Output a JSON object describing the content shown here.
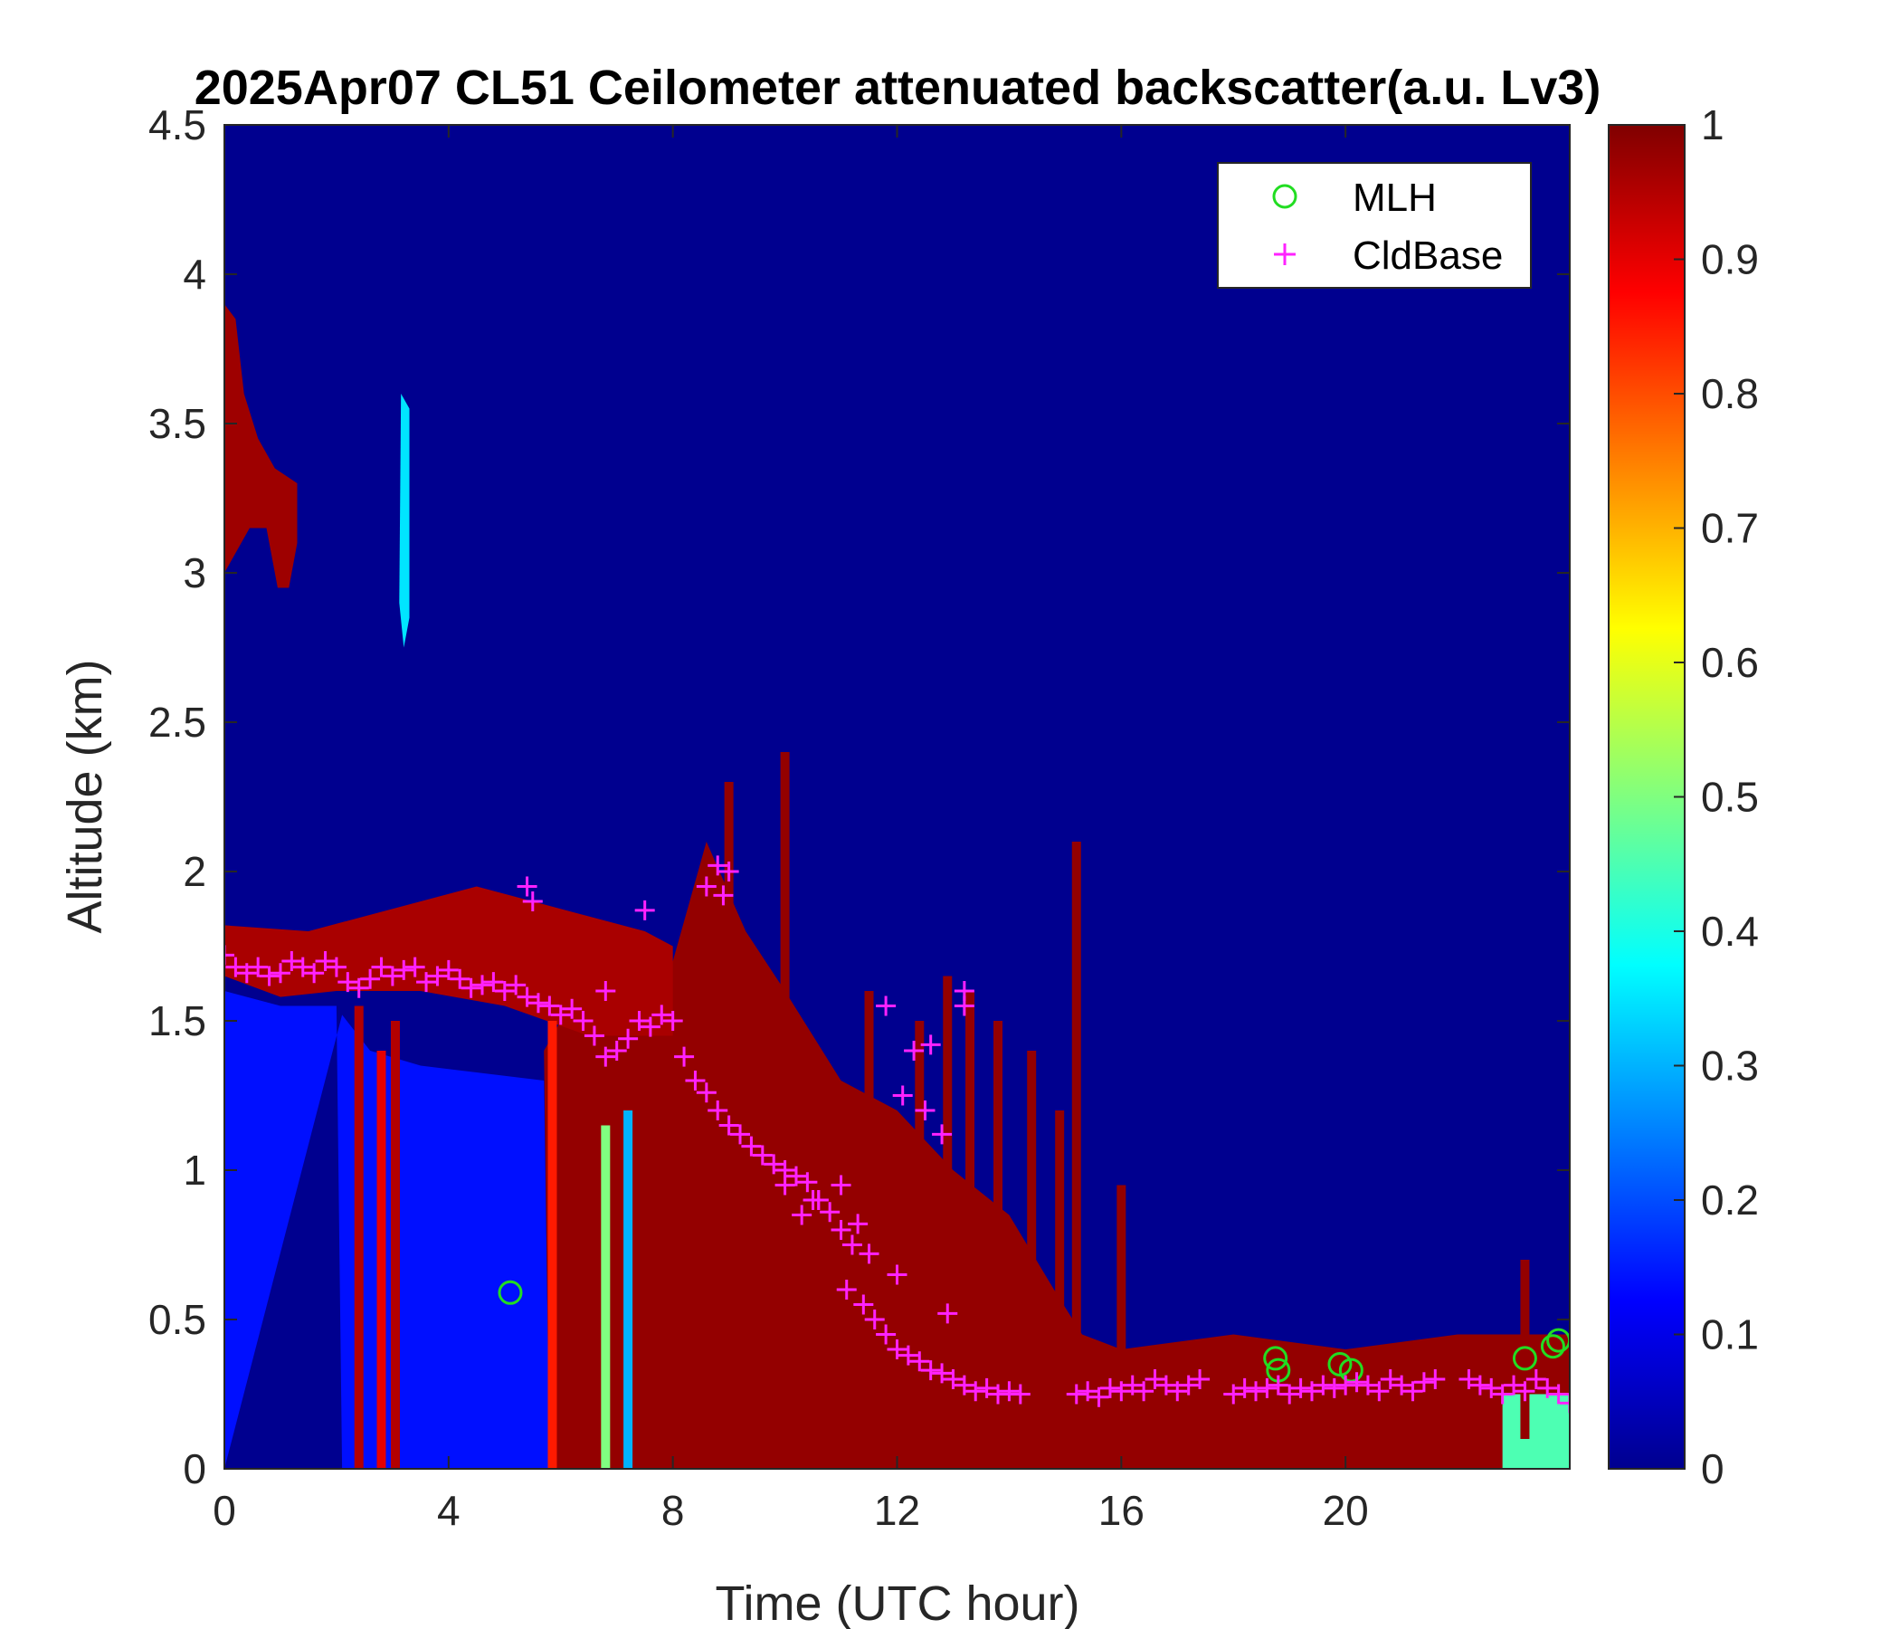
{
  "chart_data": {
    "type": "heatmap",
    "title": "2025Apr07 CL51 Ceilometer attenuated backscatter(a.u. Lv3)",
    "xlabel": "Time (UTC hour)",
    "ylabel": "Altitude (km)",
    "xlim": [
      0,
      24
    ],
    "ylim": [
      0,
      4.5
    ],
    "xticks": [
      "0",
      "4",
      "8",
      "12",
      "16",
      "20"
    ],
    "xtick_values": [
      0,
      4,
      8,
      12,
      16,
      20
    ],
    "yticks": [
      "0",
      "0.5",
      "1",
      "1.5",
      "2",
      "2.5",
      "3",
      "3.5",
      "4",
      "4.5"
    ],
    "ytick_values": [
      0,
      0.5,
      1,
      1.5,
      2,
      2.5,
      3,
      3.5,
      4,
      4.5
    ],
    "colorbar": {
      "colormap": "jet",
      "range": [
        0,
        1
      ],
      "ticks": [
        "0",
        "0.1",
        "0.2",
        "0.3",
        "0.4",
        "0.5",
        "0.6",
        "0.7",
        "0.8",
        "0.9",
        "1"
      ],
      "tick_values": [
        0,
        0.1,
        0.2,
        0.3,
        0.4,
        0.5,
        0.6,
        0.7,
        0.8,
        0.9,
        1
      ]
    },
    "background_value": 0.02,
    "grid": false,
    "legend": {
      "position": "top-right",
      "entries": [
        {
          "label": "MLH",
          "marker": "circle",
          "color": "#22dd22"
        },
        {
          "label": "CldBase",
          "marker": "plus",
          "color": "#ff22ff"
        }
      ]
    },
    "backscatter_regions": [
      {
        "desc": "upper cloud",
        "polygon": [
          [
            0,
            3.0
          ],
          [
            0,
            3.9
          ],
          [
            0.2,
            3.85
          ],
          [
            0.35,
            3.6
          ],
          [
            0.6,
            3.45
          ],
          [
            0.9,
            3.35
          ],
          [
            1.3,
            3.3
          ],
          [
            1.3,
            3.1
          ],
          [
            1.15,
            2.95
          ],
          [
            0.95,
            2.95
          ],
          [
            0.75,
            3.15
          ],
          [
            0.45,
            3.15
          ],
          [
            0.15,
            3.05
          ]
        ],
        "value": 0.97
      },
      {
        "desc": "thin streak",
        "polygon": [
          [
            3.15,
            3.6
          ],
          [
            3.3,
            3.55
          ],
          [
            3.3,
            2.85
          ],
          [
            3.2,
            2.75
          ],
          [
            3.12,
            2.9
          ]
        ],
        "value": 0.35
      },
      {
        "desc": "boundary aerosol 0-5.8h",
        "polygon": [
          [
            0,
            0
          ],
          [
            0,
            1.6
          ],
          [
            1.0,
            1.55
          ],
          [
            2.0,
            1.55
          ],
          [
            2.1,
            0
          ],
          [
            5.8,
            0
          ],
          [
            5.7,
            1.3
          ],
          [
            3.5,
            1.35
          ],
          [
            2.6,
            1.4
          ],
          [
            2.1,
            1.52
          ]
        ],
        "value": 0.14
      },
      {
        "desc": "dense lower cloud 5.8-24h",
        "polygon": [
          [
            5.8,
            0
          ],
          [
            5.7,
            1.4
          ],
          [
            6.0,
            1.5
          ],
          [
            7.0,
            1.6
          ],
          [
            8.0,
            1.7
          ],
          [
            8.6,
            2.1
          ],
          [
            9.3,
            1.8
          ],
          [
            10.0,
            1.6
          ],
          [
            11.0,
            1.3
          ],
          [
            12.0,
            1.2
          ],
          [
            13.0,
            1.0
          ],
          [
            14.0,
            0.85
          ],
          [
            14.8,
            0.6
          ],
          [
            15.3,
            0.45
          ],
          [
            16.0,
            0.4
          ],
          [
            18.0,
            0.45
          ],
          [
            20.0,
            0.4
          ],
          [
            22.0,
            0.45
          ],
          [
            24.0,
            0.45
          ],
          [
            24.0,
            0
          ],
          [
            5.8,
            0
          ]
        ],
        "value": 0.98
      },
      {
        "desc": "cloud layer near 1.7 km",
        "polygon": [
          [
            0,
            1.65
          ],
          [
            0,
            1.82
          ],
          [
            1.5,
            1.8
          ],
          [
            2.5,
            1.85
          ],
          [
            3.5,
            1.9
          ],
          [
            4.5,
            1.95
          ],
          [
            5.5,
            1.9
          ],
          [
            6.5,
            1.85
          ],
          [
            7.5,
            1.8
          ],
          [
            8.0,
            1.75
          ],
          [
            8.0,
            1.45
          ],
          [
            6.5,
            1.45
          ],
          [
            5.0,
            1.55
          ],
          [
            3.5,
            1.6
          ],
          [
            2.0,
            1.6
          ],
          [
            1.0,
            1.58
          ]
        ],
        "value": 0.96
      }
    ],
    "spikes": [
      {
        "x": 2.4,
        "ymin": 0,
        "ymax": 1.55,
        "value": 0.95
      },
      {
        "x": 2.8,
        "ymin": 0,
        "ymax": 1.4,
        "value": 0.9
      },
      {
        "x": 3.05,
        "ymin": 0,
        "ymax": 1.5,
        "value": 0.95
      },
      {
        "x": 5.85,
        "ymin": 0,
        "ymax": 1.5,
        "value": 0.85
      },
      {
        "x": 6.8,
        "ymin": 0,
        "ymax": 1.15,
        "value": 0.5
      },
      {
        "x": 7.2,
        "ymin": 0,
        "ymax": 1.2,
        "value": 0.3
      },
      {
        "x": 9.0,
        "ymin": 0.8,
        "ymax": 2.3,
        "value": 0.98
      },
      {
        "x": 10.0,
        "ymin": 0.8,
        "ymax": 2.4,
        "value": 0.98
      },
      {
        "x": 11.5,
        "ymin": 0.5,
        "ymax": 1.6,
        "value": 0.98
      },
      {
        "x": 12.4,
        "ymin": 0.4,
        "ymax": 1.5,
        "value": 0.98
      },
      {
        "x": 12.9,
        "ymin": 0.4,
        "ymax": 1.65,
        "value": 0.98
      },
      {
        "x": 13.3,
        "ymin": 0.3,
        "ymax": 1.6,
        "value": 0.98
      },
      {
        "x": 13.8,
        "ymin": 0.3,
        "ymax": 1.5,
        "value": 0.98
      },
      {
        "x": 14.4,
        "ymin": 0.3,
        "ymax": 1.4,
        "value": 0.98
      },
      {
        "x": 14.9,
        "ymin": 0.3,
        "ymax": 1.2,
        "value": 0.98
      },
      {
        "x": 15.2,
        "ymin": 0.3,
        "ymax": 2.1,
        "value": 0.98
      },
      {
        "x": 16.0,
        "ymin": 0.3,
        "ymax": 0.95,
        "value": 0.98
      },
      {
        "x": 23.2,
        "ymin": 0.1,
        "ymax": 0.7,
        "value": 0.98
      }
    ],
    "surface_fill": [
      {
        "x0": 22.8,
        "x1": 24.0,
        "ymin": 0,
        "ymax": 0.25,
        "value": 0.45
      }
    ],
    "series": [
      {
        "name": "MLH",
        "marker": "circle",
        "x": [
          5.1,
          18.75,
          18.8,
          19.9,
          20.1,
          23.2,
          23.7,
          23.8
        ],
        "y": [
          0.59,
          0.37,
          0.33,
          0.35,
          0.33,
          0.37,
          0.41,
          0.43
        ]
      },
      {
        "name": "CldBase",
        "marker": "plus",
        "x": [
          0,
          0.2,
          0.4,
          0.6,
          0.8,
          1.0,
          1.2,
          1.4,
          1.6,
          1.8,
          2.0,
          2.2,
          2.4,
          2.6,
          2.8,
          3.0,
          3.2,
          3.4,
          3.6,
          3.8,
          4.0,
          4.2,
          4.4,
          4.6,
          4.8,
          5.0,
          5.2,
          5.4,
          5.6,
          5.8,
          6.0,
          6.2,
          6.4,
          6.6,
          6.8,
          7.0,
          7.2,
          7.4,
          7.6,
          7.8,
          8.0,
          8.2,
          8.4,
          8.6,
          8.8,
          9.0,
          9.2,
          9.4,
          9.6,
          9.8,
          10.0,
          10.2,
          10.4,
          10.6,
          10.8,
          11.0,
          11.2,
          11.4,
          11.6,
          11.8,
          12.0,
          12.2,
          12.4,
          12.6,
          12.8,
          13.0,
          13.2,
          13.4,
          13.6,
          13.8,
          14.0,
          14.2,
          15.2,
          15.4,
          15.6,
          15.8,
          16.0,
          16.2,
          16.4,
          16.6,
          16.8,
          17.0,
          17.2,
          17.4,
          18.0,
          18.2,
          18.4,
          18.6,
          18.8,
          19.0,
          19.2,
          19.4,
          19.6,
          19.8,
          20.0,
          20.2,
          20.4,
          20.6,
          20.8,
          21.0,
          21.2,
          21.4,
          21.6,
          22.2,
          22.4,
          22.6,
          22.8,
          23.0,
          23.2,
          23.4,
          23.6,
          23.8,
          24.0,
          5.4,
          5.5,
          6.8,
          7.5,
          8.6,
          8.8,
          8.9,
          9.0,
          11.8,
          12.3,
          12.6,
          13.2,
          13.2,
          10.3,
          10.6,
          11.0,
          11.3,
          11.5,
          12.1,
          12.5,
          12.8,
          10.0,
          10.5,
          11.1,
          12.0,
          12.9
        ],
        "y": [
          1.72,
          1.68,
          1.66,
          1.68,
          1.65,
          1.66,
          1.7,
          1.68,
          1.66,
          1.7,
          1.68,
          1.63,
          1.61,
          1.64,
          1.68,
          1.65,
          1.67,
          1.68,
          1.63,
          1.65,
          1.67,
          1.64,
          1.61,
          1.62,
          1.63,
          1.6,
          1.62,
          1.58,
          1.56,
          1.55,
          1.52,
          1.54,
          1.5,
          1.45,
          1.38,
          1.4,
          1.44,
          1.5,
          1.48,
          1.52,
          1.5,
          1.38,
          1.3,
          1.26,
          1.2,
          1.15,
          1.12,
          1.08,
          1.05,
          1.02,
          1.0,
          0.98,
          0.96,
          0.9,
          0.86,
          0.8,
          0.75,
          0.55,
          0.5,
          0.45,
          0.4,
          0.38,
          0.36,
          0.33,
          0.32,
          0.3,
          0.28,
          0.26,
          0.27,
          0.25,
          0.26,
          0.25,
          0.25,
          0.26,
          0.24,
          0.27,
          0.26,
          0.28,
          0.26,
          0.3,
          0.28,
          0.26,
          0.28,
          0.3,
          0.25,
          0.27,
          0.26,
          0.27,
          0.28,
          0.25,
          0.27,
          0.26,
          0.28,
          0.27,
          0.28,
          0.29,
          0.28,
          0.26,
          0.3,
          0.28,
          0.26,
          0.29,
          0.3,
          0.3,
          0.28,
          0.27,
          0.25,
          0.28,
          0.26,
          0.3,
          0.27,
          0.25,
          0.22,
          1.95,
          1.9,
          1.6,
          1.87,
          1.95,
          2.02,
          1.92,
          2.0,
          1.55,
          1.4,
          1.42,
          1.6,
          1.55,
          0.85,
          0.9,
          0.95,
          0.82,
          0.72,
          1.25,
          1.2,
          1.12,
          0.95,
          0.9,
          0.6,
          0.65,
          0.52
        ]
      }
    ]
  }
}
